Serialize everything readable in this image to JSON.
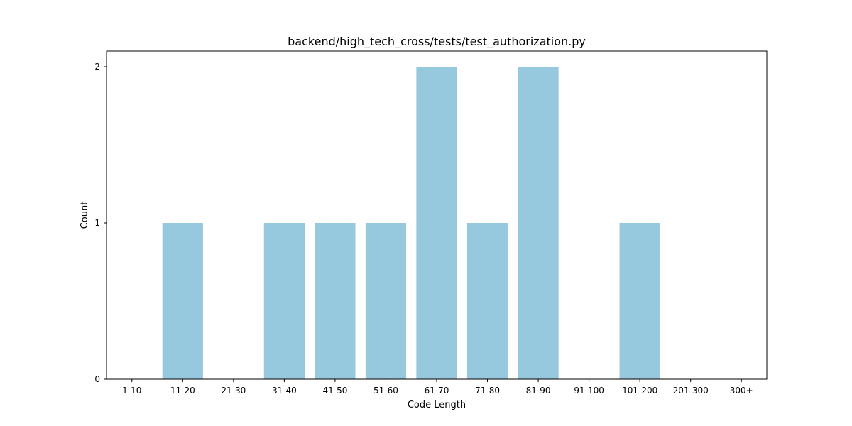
{
  "chart_data": {
    "type": "bar",
    "title": "backend/high_tech_cross/tests/test_authorization.py",
    "xlabel": "Code Length",
    "ylabel": "Count",
    "categories": [
      "1-10",
      "11-20",
      "21-30",
      "31-40",
      "41-50",
      "51-60",
      "61-70",
      "71-80",
      "81-90",
      "91-100",
      "101-200",
      "201-300",
      "300+"
    ],
    "values": [
      0,
      1,
      0,
      1,
      1,
      1,
      2,
      1,
      2,
      0,
      1,
      0,
      0
    ],
    "ylim": [
      0,
      2.1
    ],
    "yticks": [
      0,
      1,
      2
    ],
    "ytick_labels": [
      "0",
      "1",
      "2"
    ],
    "bar_color": "#96c9dd",
    "grid": false,
    "legend": "none"
  }
}
